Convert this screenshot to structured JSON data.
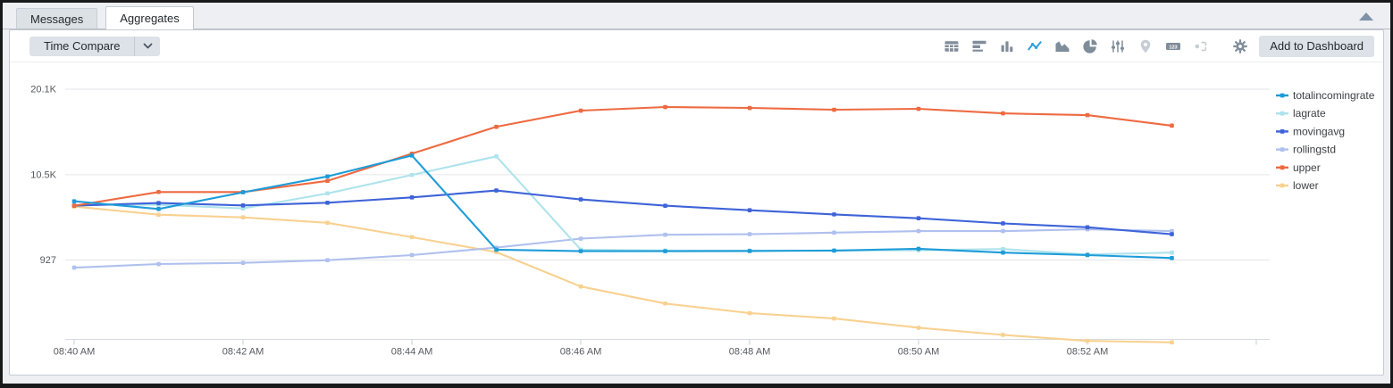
{
  "window": {
    "tabs": [
      {
        "label": "Messages",
        "active": false
      },
      {
        "label": "Aggregates",
        "active": true
      }
    ]
  },
  "toolbar": {
    "time_compare_label": "Time Compare",
    "add_to_dashboard_label": "Add to Dashboard",
    "badge_123": "123",
    "icons": [
      {
        "name": "table-icon",
        "state": "default"
      },
      {
        "name": "bar-chart-horizontal-icon",
        "state": "default"
      },
      {
        "name": "column-chart-icon",
        "state": "default"
      },
      {
        "name": "line-chart-icon",
        "state": "active"
      },
      {
        "name": "area-chart-icon",
        "state": "default"
      },
      {
        "name": "pie-chart-icon",
        "state": "default"
      },
      {
        "name": "sliders-icon",
        "state": "default"
      },
      {
        "name": "map-pin-icon",
        "state": "disabled"
      },
      {
        "name": "number-badge-icon",
        "state": "default"
      },
      {
        "name": "node-link-icon",
        "state": "disabled"
      },
      {
        "name": "gear-icon",
        "state": "default"
      }
    ]
  },
  "colors": {
    "icon_default": "#7f8c99",
    "icon_active": "#2b9fe0",
    "icon_disabled": "#c6cdd4",
    "grid": "#e4e6e8",
    "axis_line": "#d5dade",
    "tick": "#c8ced4",
    "axis_text": "#55595e",
    "legend_text": "#3c4145"
  },
  "chart_data": {
    "type": "line",
    "x": [
      "08:40",
      "08:41",
      "08:42",
      "08:43",
      "08:44",
      "08:45",
      "08:46",
      "08:47",
      "08:48",
      "08:49",
      "08:50",
      "08:51",
      "08:52",
      "08:53"
    ],
    "x_axis_labels": [
      "08:40 AM",
      "08:42 AM",
      "08:44 AM",
      "08:46 AM",
      "08:48 AM",
      "08:50 AM",
      "08:52 AM"
    ],
    "y_axis": {
      "tick_labels": [
        "20.1K",
        "10.5K",
        "927"
      ],
      "tick_values": [
        20100,
        10500,
        927
      ]
    },
    "grid": "horizontal",
    "legend_position": "right",
    "series": [
      {
        "name": "totalincomingrate",
        "color": "#1e9cd8",
        "values": [
          7520,
          6650,
          8530,
          10310,
          12660,
          2085,
          1915,
          1915,
          1935,
          1985,
          2185,
          1755,
          1480,
          1150
        ]
      },
      {
        "name": "lagrate",
        "color": "#aee3ec",
        "values": [
          7120,
          7120,
          6715,
          8400,
          10475,
          12560,
          2085,
          1985,
          1985,
          1985,
          2015,
          2155,
          1550,
          1755
        ]
      },
      {
        "name": "movingavg",
        "color": "#3e63d8",
        "values": [
          7020,
          7320,
          7050,
          7350,
          7955,
          8730,
          7725,
          7020,
          6515,
          6045,
          5610,
          5035,
          4605,
          3825
        ]
      },
      {
        "name": "rollingstd",
        "color": "#b0c0ee",
        "values": [
          70,
          475,
          605,
          905,
          1480,
          2315,
          3325,
          3765,
          3825,
          4000,
          4170,
          4170,
          4370,
          4170
        ]
      },
      {
        "name": "upper",
        "color": "#ee6a41",
        "values": [
          7020,
          8560,
          8560,
          9810,
          12860,
          15880,
          17695,
          18095,
          17995,
          17795,
          17895,
          17390,
          17190,
          16010
        ]
      },
      {
        "name": "lower",
        "color": "#f8d190",
        "values": [
          6920,
          6015,
          5710,
          5105,
          3495,
          1815,
          -2045,
          -3955,
          -5035,
          -5640,
          -6675,
          -7480,
          -8155,
          -8315
        ]
      }
    ]
  }
}
